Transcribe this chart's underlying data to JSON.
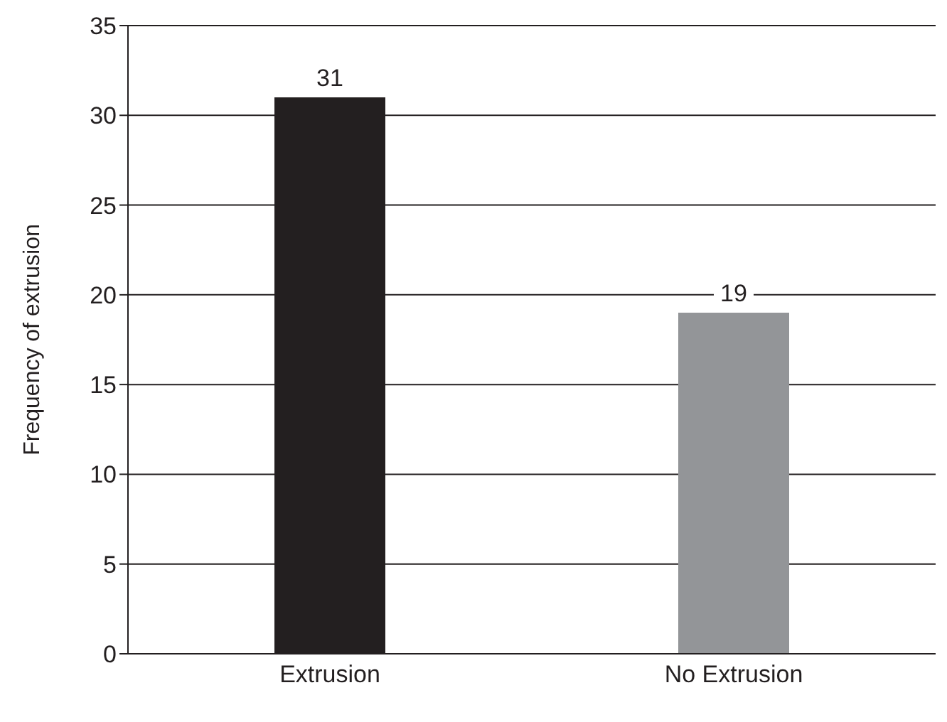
{
  "chart_data": {
    "type": "bar",
    "ylabel": "Frequency of extrusion",
    "categories": [
      "Extrusion",
      "No Extrusion"
    ],
    "values": [
      31,
      19
    ],
    "colors": [
      "#231f20",
      "#939598"
    ],
    "ylim": [
      0,
      35
    ],
    "yticks": [
      0,
      5,
      10,
      15,
      20,
      25,
      30,
      35
    ],
    "grid": "y",
    "data_labels": true
  }
}
